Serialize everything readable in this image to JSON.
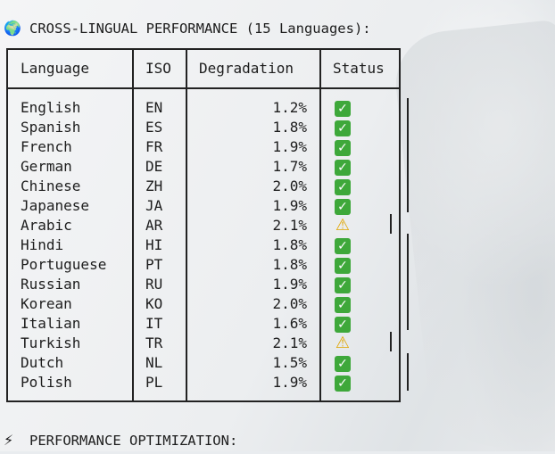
{
  "section1": {
    "icon": "🌍",
    "title": "CROSS-LINGUAL PERFORMANCE (15 Languages):"
  },
  "section2": {
    "icon": "⚡",
    "title": "PERFORMANCE OPTIMIZATION:"
  },
  "table": {
    "headers": {
      "language": "Language",
      "iso": "ISO",
      "degradation": "Degradation",
      "status": "Status"
    },
    "rows": [
      {
        "language": "English",
        "iso": "EN",
        "degradation": "1.2%",
        "status": "ok"
      },
      {
        "language": "Spanish",
        "iso": "ES",
        "degradation": "1.8%",
        "status": "ok"
      },
      {
        "language": "French",
        "iso": "FR",
        "degradation": "1.9%",
        "status": "ok"
      },
      {
        "language": "German",
        "iso": "DE",
        "degradation": "1.7%",
        "status": "ok"
      },
      {
        "language": "Chinese",
        "iso": "ZH",
        "degradation": "2.0%",
        "status": "ok"
      },
      {
        "language": "Japanese",
        "iso": "JA",
        "degradation": "1.9%",
        "status": "ok"
      },
      {
        "language": "Arabic",
        "iso": "AR",
        "degradation": "2.1%",
        "status": "warning"
      },
      {
        "language": "Hindi",
        "iso": "HI",
        "degradation": "1.8%",
        "status": "ok"
      },
      {
        "language": "Portuguese",
        "iso": "PT",
        "degradation": "1.8%",
        "status": "ok"
      },
      {
        "language": "Russian",
        "iso": "RU",
        "degradation": "1.9%",
        "status": "ok"
      },
      {
        "language": "Korean",
        "iso": "KO",
        "degradation": "2.0%",
        "status": "ok"
      },
      {
        "language": "Italian",
        "iso": "IT",
        "degradation": "1.6%",
        "status": "ok"
      },
      {
        "language": "Turkish",
        "iso": "TR",
        "degradation": "2.1%",
        "status": "warning"
      },
      {
        "language": "Dutch",
        "iso": "NL",
        "degradation": "1.5%",
        "status": "ok"
      },
      {
        "language": "Polish",
        "iso": "PL",
        "degradation": "1.9%",
        "status": "ok"
      }
    ]
  },
  "status_icons": {
    "ok": "check-mark-icon",
    "warning": "warning-icon"
  },
  "colors": {
    "ok": "#3ea83a",
    "warning": "#e0a500",
    "border": "#222222"
  }
}
